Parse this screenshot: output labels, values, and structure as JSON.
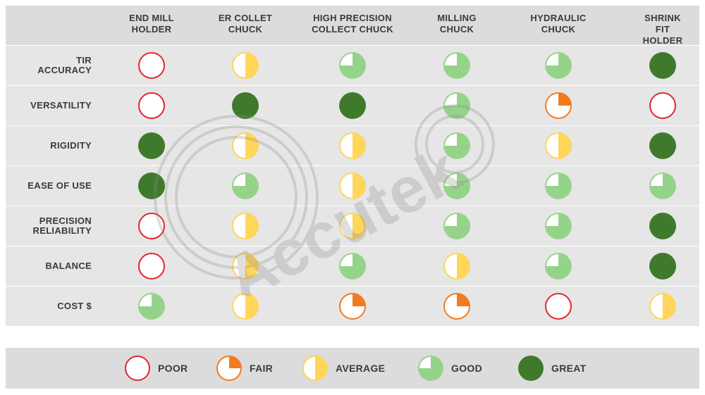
{
  "columns": [
    {
      "label": "END MILL\nHOLDER"
    },
    {
      "label": "ER COLLET\nCHUCK"
    },
    {
      "label": "HIGH PRECISION\nCOLLECT CHUCK"
    },
    {
      "label": "MILLING\nCHUCK"
    },
    {
      "label": "HYDRAULIC\nCHUCK"
    },
    {
      "label": "SHRINK FIT\nHOLDER"
    }
  ],
  "rows": [
    {
      "label": "TIR\nACCURACY",
      "ratings": [
        "poor",
        "average",
        "good",
        "good",
        "good",
        "great"
      ]
    },
    {
      "label": "VERSATILITY",
      "ratings": [
        "poor",
        "great",
        "great",
        "good",
        "fair",
        "poor"
      ]
    },
    {
      "label": "RIGIDITY",
      "ratings": [
        "great",
        "average",
        "average",
        "good",
        "average",
        "great"
      ]
    },
    {
      "label": "EASE OF USE",
      "ratings": [
        "great",
        "good",
        "average",
        "good",
        "good",
        "good"
      ]
    },
    {
      "label": "PRECISION\nRELIABILITY",
      "ratings": [
        "poor",
        "average",
        "average",
        "good",
        "good",
        "great"
      ]
    },
    {
      "label": "BALANCE",
      "ratings": [
        "poor",
        "average",
        "good",
        "average",
        "good",
        "great"
      ]
    },
    {
      "label": "COST $",
      "ratings": [
        "good",
        "average",
        "fair",
        "fair",
        "poor",
        "average"
      ]
    }
  ],
  "legend": [
    {
      "rating": "poor",
      "label": "POOR"
    },
    {
      "rating": "fair",
      "label": "FAIR"
    },
    {
      "rating": "average",
      "label": "AVERAGE"
    },
    {
      "rating": "good",
      "label": "GOOD"
    },
    {
      "rating": "great",
      "label": "GREAT"
    }
  ],
  "watermark_text": "Accutek",
  "colors": {
    "poor_stroke": "#e0282e",
    "fair": "#f47a20",
    "average": "#ffd55a",
    "good": "#96d38a",
    "great": "#3f7a2c",
    "text": "#3a3a3a"
  }
}
